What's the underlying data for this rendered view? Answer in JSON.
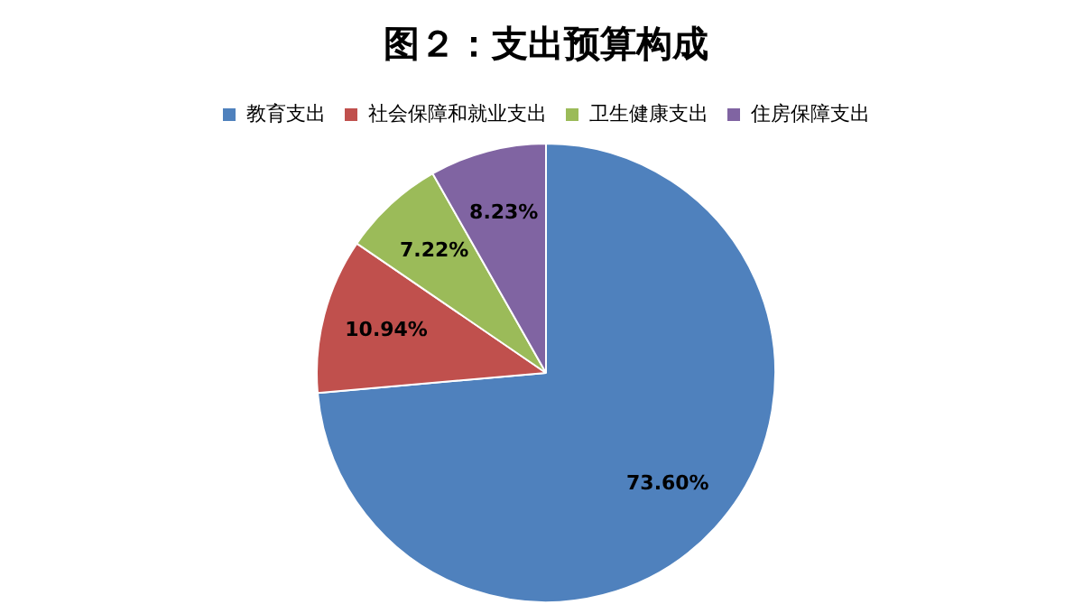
{
  "chart_data": {
    "type": "pie",
    "title": "图２：支出预算构成",
    "categories": [
      "教育支出",
      "社会保障和就业支出",
      "卫生健康支出",
      "住房保障支出"
    ],
    "values": [
      73.6,
      10.94,
      7.22,
      8.23
    ],
    "value_labels": [
      "73.60%",
      "10.94%",
      "7.22%",
      "8.23%"
    ],
    "colors": [
      "#4f81bd",
      "#c0504d",
      "#9bbb59",
      "#8064a2"
    ],
    "legend": "top"
  }
}
